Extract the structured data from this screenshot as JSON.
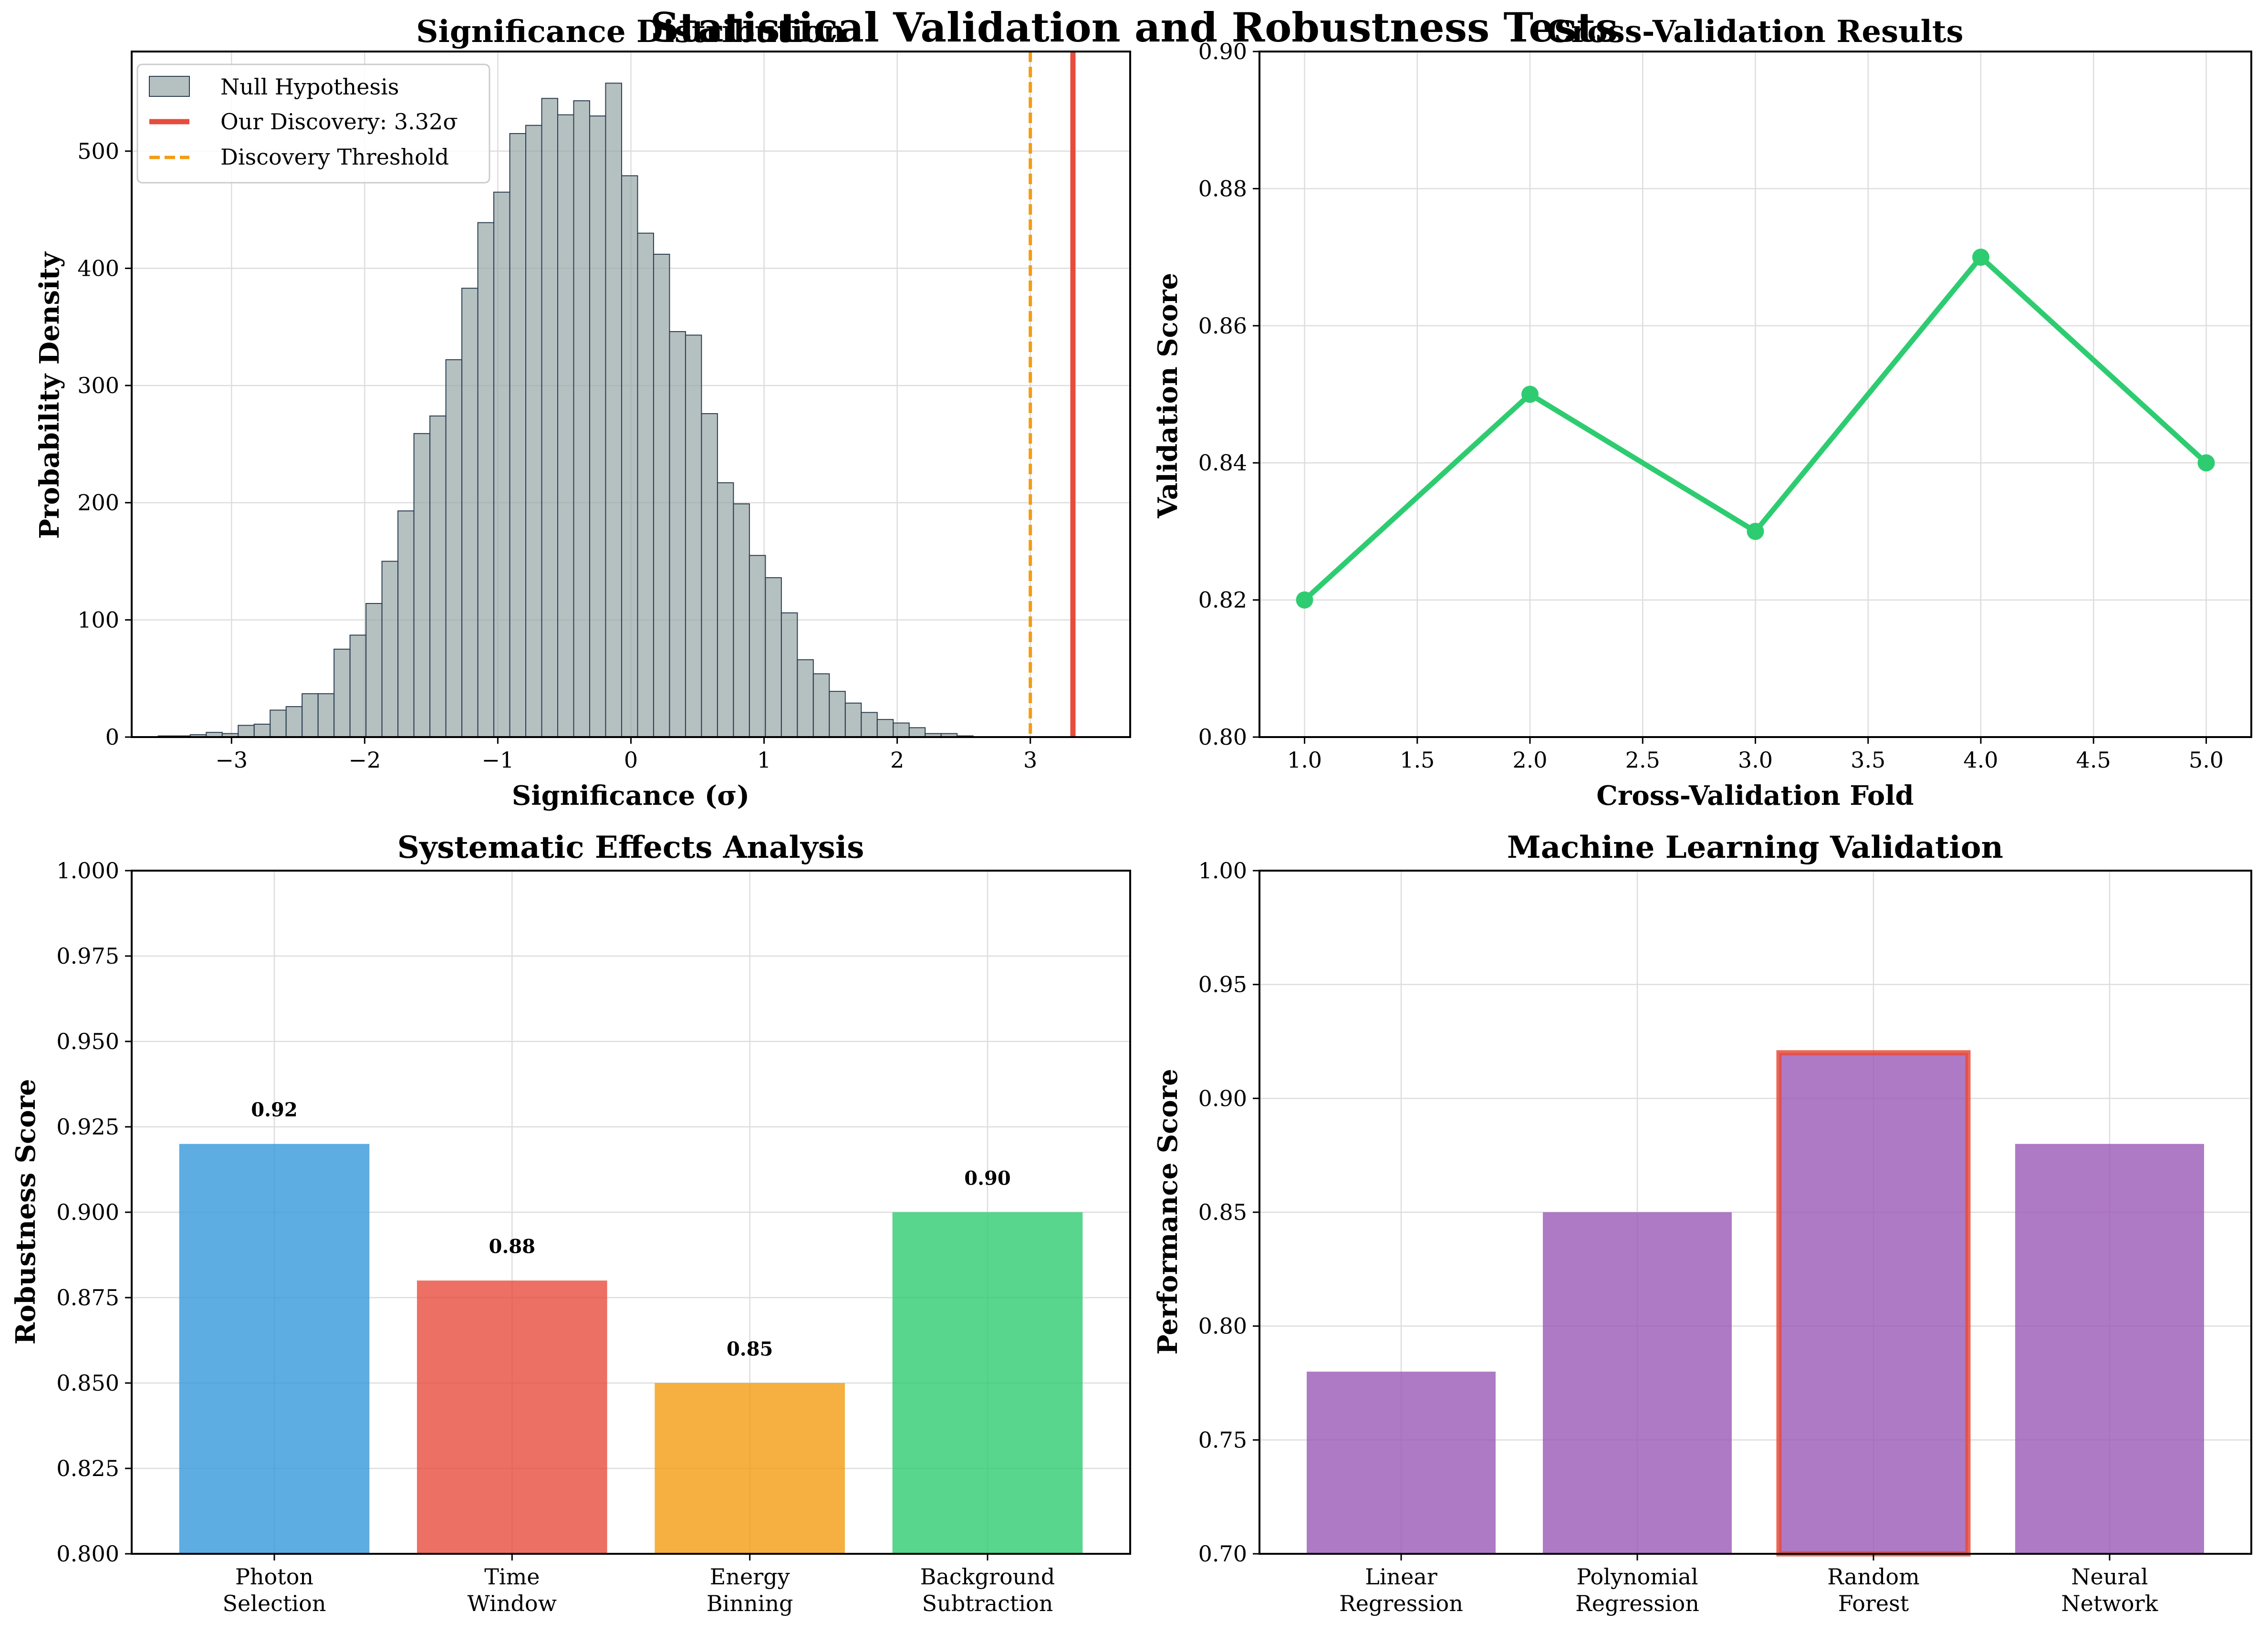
{
  "suptitle": "Statistical Validation and Robustness Tests",
  "colors": {
    "hist_fill": "#95a5a6",
    "hist_edge": "#2c3e50",
    "discovery": "#e74c3c",
    "threshold": "#f39c12",
    "cv_line": "#2ecc71",
    "ml_bar": "#9b59b6",
    "ml_highlight": "#e74c3c",
    "sys_bars": [
      "#3498db",
      "#e74c3c",
      "#f39c12",
      "#2ecc71"
    ]
  },
  "chart_data": [
    {
      "type": "bar",
      "subtype": "histogram",
      "title": "Significance Distribution",
      "xlabel": "Significance (σ)",
      "ylabel": "Probability Density",
      "xlim": [
        -3.75,
        3.75
      ],
      "ylim": [
        0,
        585
      ],
      "xticks": [
        "−3",
        "−2",
        "−1",
        "0",
        "1",
        "2",
        "3"
      ],
      "yticks": [
        "0",
        "100",
        "200",
        "300",
        "400",
        "500"
      ],
      "grid": true,
      "legend_position": "top-left",
      "bin_start": -3.55,
      "bin_width": 0.12,
      "values": [
        1,
        1,
        2,
        4,
        3,
        10,
        11,
        23,
        26,
        37,
        37,
        75,
        87,
        114,
        150,
        193,
        259,
        274,
        322,
        383,
        439,
        465,
        515,
        522,
        545,
        531,
        543,
        530,
        558,
        479,
        430,
        412,
        346,
        343,
        276,
        217,
        199,
        155,
        136,
        106,
        66,
        54,
        39,
        29,
        21,
        15,
        12,
        8,
        3,
        3,
        1
      ],
      "vlines": [
        {
          "name": "Our Discovery: 3.32σ",
          "x": 3.32,
          "style": "solid",
          "color": "#e74c3c"
        },
        {
          "name": "Discovery Threshold",
          "x": 3.0,
          "style": "dashed",
          "color": "#f39c12"
        }
      ],
      "series": [
        {
          "name": "Null Hypothesis"
        }
      ]
    },
    {
      "type": "line",
      "title": "Cross-Validation Results",
      "xlabel": "Cross-Validation Fold",
      "ylabel": "Validation Score",
      "x": [
        1,
        2,
        3,
        4,
        5
      ],
      "values": [
        0.82,
        0.85,
        0.83,
        0.87,
        0.84
      ],
      "xlim": [
        0.8,
        5.2
      ],
      "ylim": [
        0.8,
        0.9
      ],
      "xticks": [
        "1.0",
        "1.5",
        "2.0",
        "2.5",
        "3.0",
        "3.5",
        "4.0",
        "4.5",
        "5.0"
      ],
      "yticks": [
        "0.80",
        "0.82",
        "0.84",
        "0.86",
        "0.88",
        "0.90"
      ],
      "grid": true
    },
    {
      "type": "bar",
      "title": "Systematic Effects Analysis",
      "xlabel": "",
      "ylabel": "Robustness Score",
      "categories": [
        "Photon Selection",
        "Time Window",
        "Energy Binning",
        "Background Subtraction"
      ],
      "category_lines": [
        [
          "Photon",
          "Selection"
        ],
        [
          "Time",
          "Window"
        ],
        [
          "Energy",
          "Binning"
        ],
        [
          "Background",
          "Subtraction"
        ]
      ],
      "values": [
        0.92,
        0.88,
        0.85,
        0.9
      ],
      "data_labels": [
        "0.92",
        "0.88",
        "0.85",
        "0.90"
      ],
      "ylim": [
        0.8,
        1.0
      ],
      "yticks": [
        "0.800",
        "0.825",
        "0.850",
        "0.875",
        "0.900",
        "0.925",
        "0.950",
        "0.975",
        "1.000"
      ],
      "grid": true
    },
    {
      "type": "bar",
      "title": "Machine Learning Validation",
      "xlabel": "",
      "ylabel": "Performance Score",
      "categories": [
        "Linear Regression",
        "Polynomial Regression",
        "Random Forest",
        "Neural Network"
      ],
      "category_lines": [
        [
          "Linear",
          "Regression"
        ],
        [
          "Polynomial",
          "Regression"
        ],
        [
          "Random",
          "Forest"
        ],
        [
          "Neural",
          "Network"
        ]
      ],
      "values": [
        0.78,
        0.85,
        0.92,
        0.88
      ],
      "highlighted_category": "Random Forest",
      "ylim": [
        0.7,
        1.0
      ],
      "yticks": [
        "0.70",
        "0.75",
        "0.80",
        "0.85",
        "0.90",
        "0.95",
        "1.00"
      ],
      "grid": true
    }
  ]
}
